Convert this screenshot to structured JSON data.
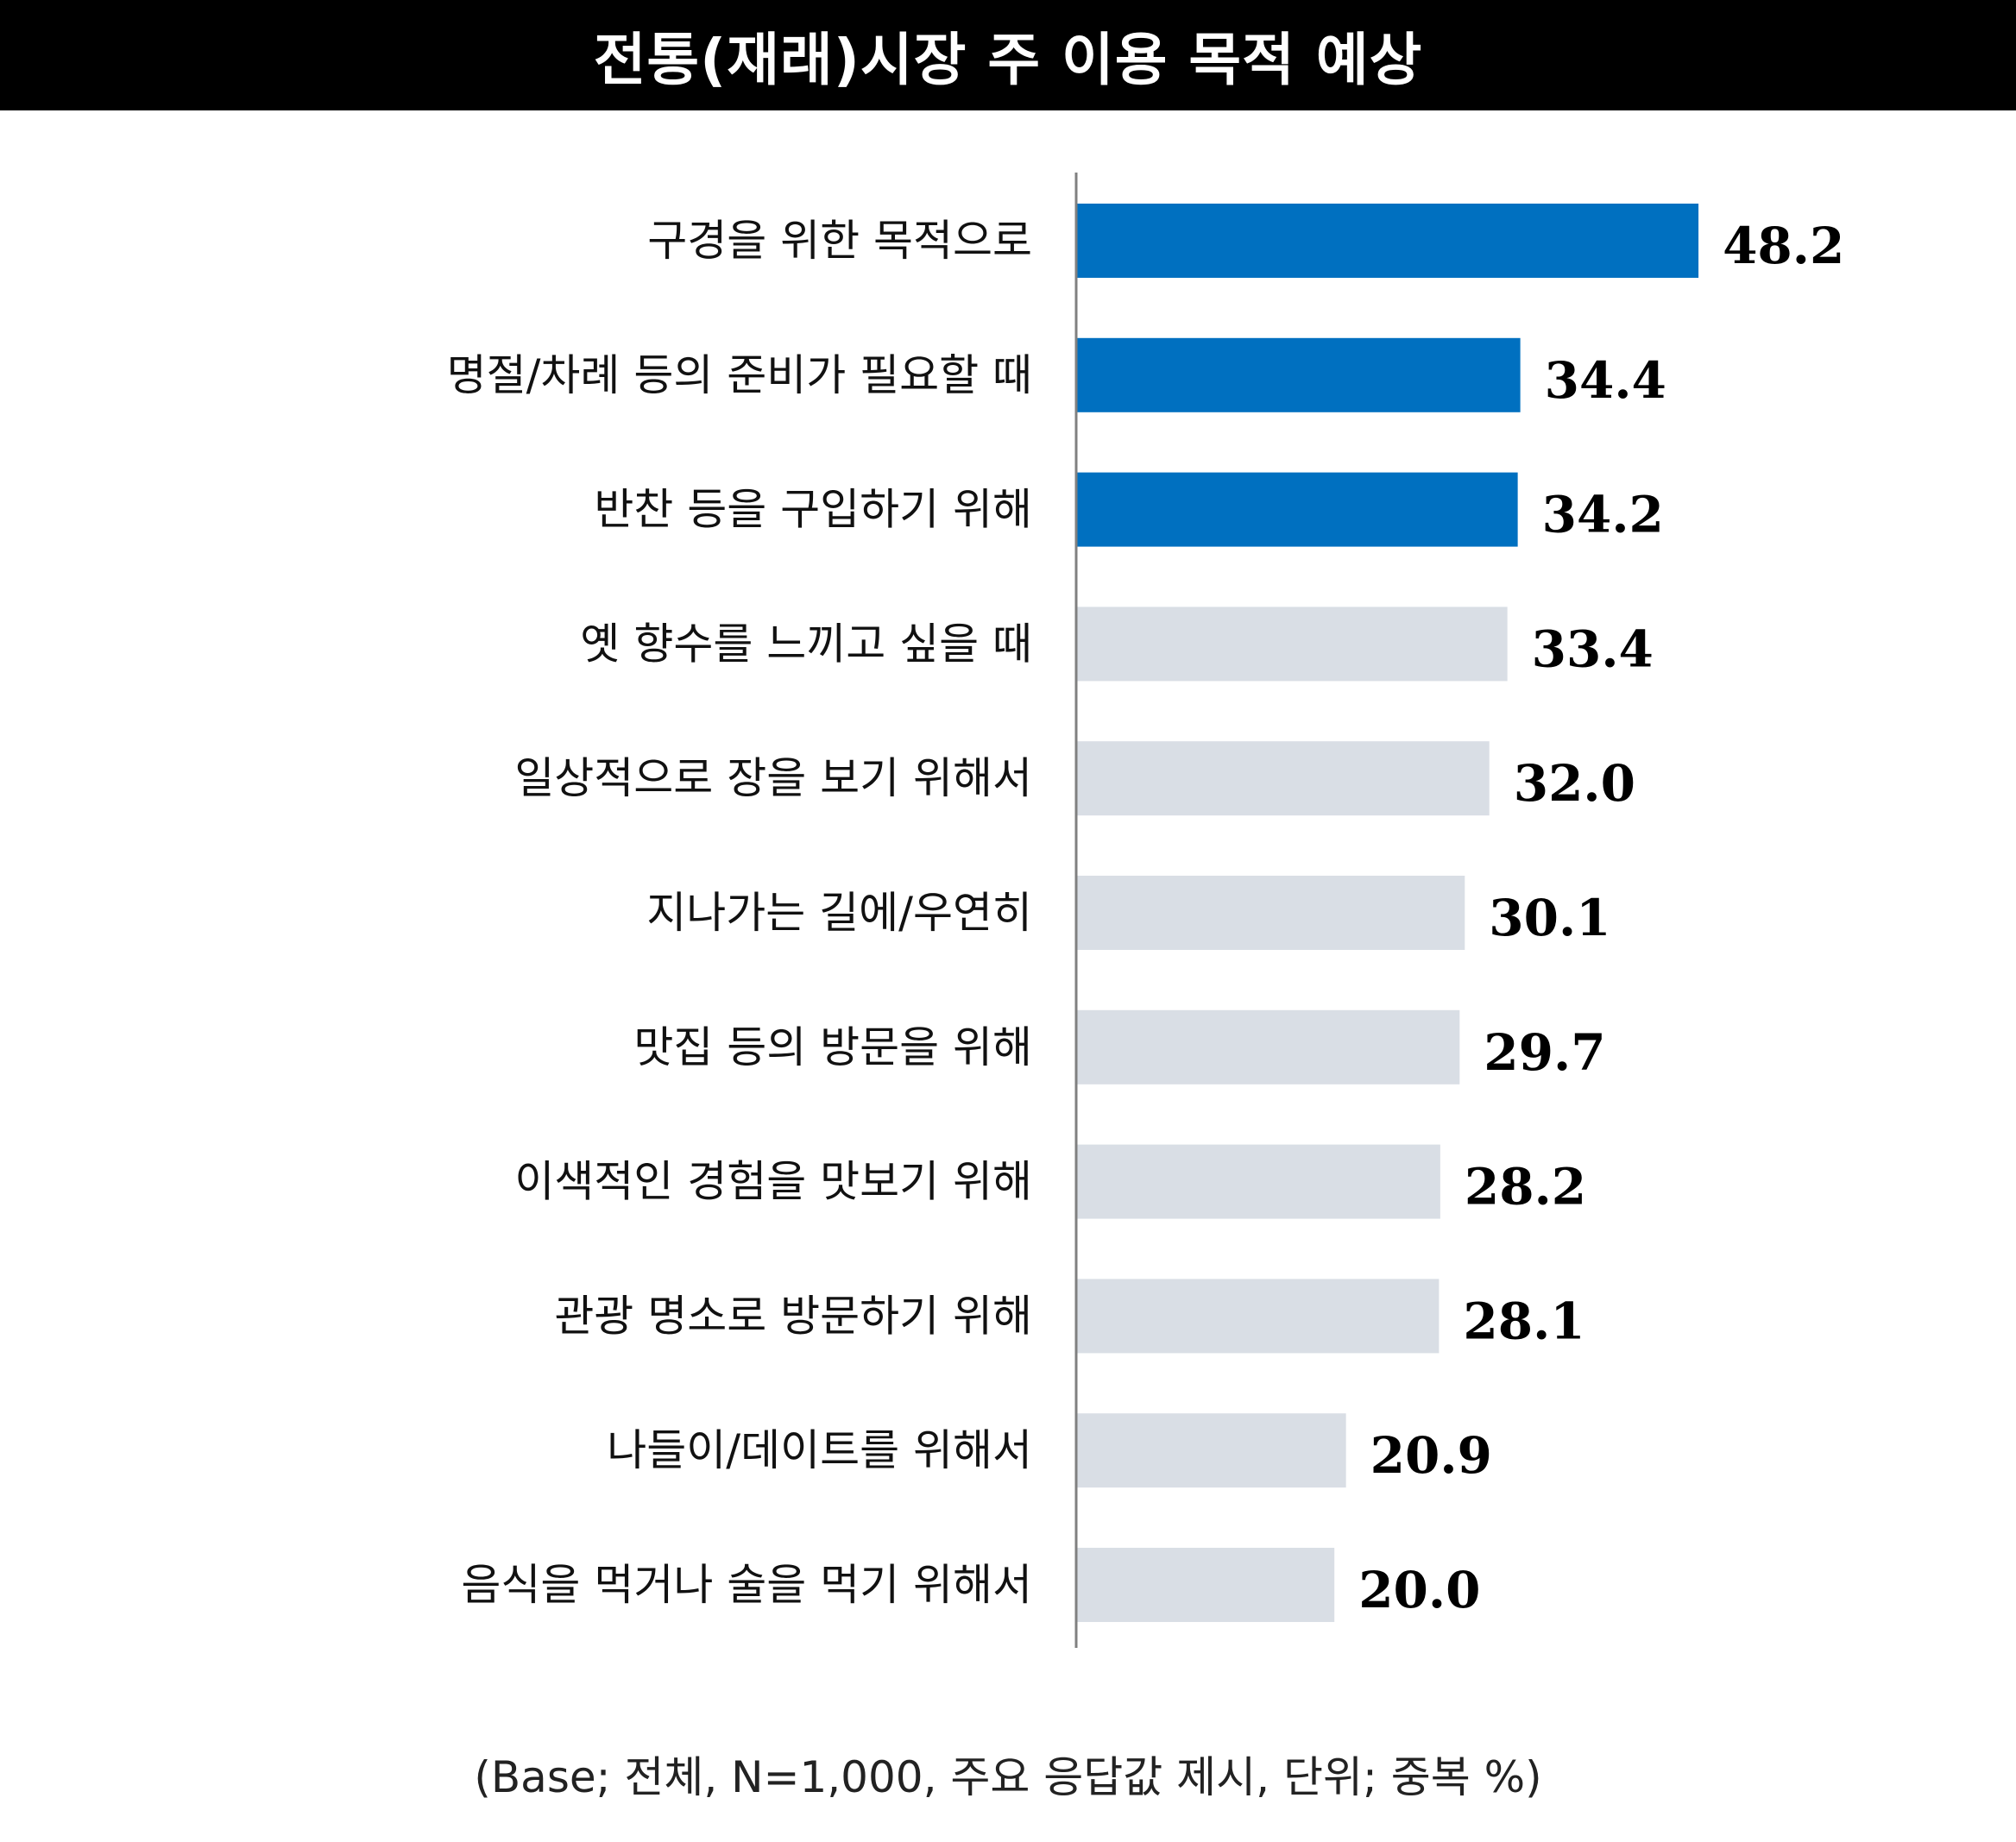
{
  "title": "전통(재래)시장 주 이용 목적 예상",
  "footnote": "(Base; 전체, N=1,000, 주요 응답값 제시, 단위; 중복 %)",
  "colors": {
    "highlight": "#0070c0",
    "default": "#d9dee5",
    "axis": "#808080"
  },
  "chart_data": {
    "type": "bar",
    "orientation": "horizontal",
    "categories": [
      "구경을 위한 목적으로",
      "명절/차례 등의 준비가 필요할 때",
      "반찬 등을 구입하기 위해",
      "옛 향수를 느끼고 싶을 때",
      "일상적으로 장을 보기 위해서",
      "지나가는 길에/우연히",
      "맛집 등의 방문을 위해",
      "이색적인 경험을 맛보기 위해",
      "관광 명소로 방문하기 위해",
      "나들이/데이트를 위해서",
      "음식을 먹거나 술을 먹기 위해서"
    ],
    "values": [
      48.2,
      34.4,
      34.2,
      33.4,
      32.0,
      30.1,
      29.7,
      28.2,
      28.1,
      20.9,
      20.0
    ],
    "value_labels": [
      "48.2",
      "34.4",
      "34.2",
      "33.4",
      "32.0",
      "30.1",
      "29.7",
      "28.2",
      "28.1",
      "20.9",
      "20.0"
    ],
    "highlighted_count": 3,
    "xlim": [
      0,
      60
    ],
    "grid": false,
    "legend": "none"
  }
}
